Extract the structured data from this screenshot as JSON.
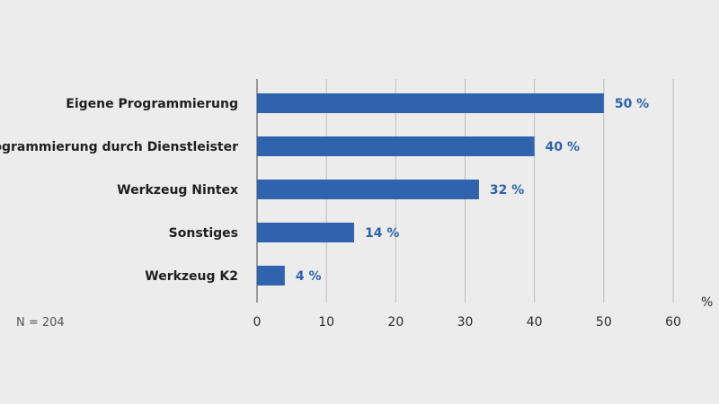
{
  "chart_data": {
    "type": "bar",
    "orientation": "horizontal",
    "categories": [
      "Eigene Programmierung",
      "Programmierung durch Dienstleister",
      "Werkzeug Nintex",
      "Sonstiges",
      "Werkzeug K2"
    ],
    "values": [
      50,
      40,
      32,
      14,
      4
    ],
    "value_labels": [
      "50 %",
      "40 %",
      "32 %",
      "14 %",
      "4 %"
    ],
    "x_ticks": [
      "0",
      "10",
      "20",
      "30",
      "40",
      "50",
      "60"
    ],
    "xlim": [
      0,
      60
    ],
    "xlabel": "%",
    "note": "N = 204",
    "grid": true,
    "bar_color": "#2f63ad"
  }
}
